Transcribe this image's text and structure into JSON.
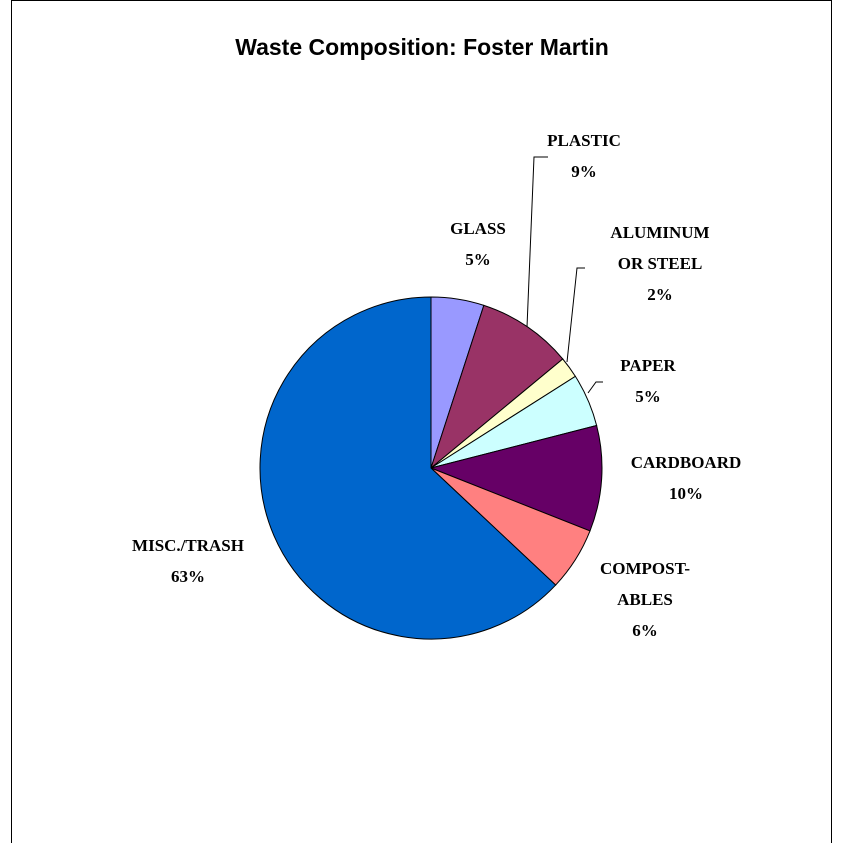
{
  "chart_data": {
    "type": "pie",
    "title": "Waste Composition: Foster Martin",
    "slices": [
      {
        "label_lines": [
          "GLASS"
        ],
        "value": 5,
        "value_label": "5%",
        "color": "#9999ff"
      },
      {
        "label_lines": [
          "PLASTIC"
        ],
        "value": 9,
        "value_label": "9%",
        "color": "#993366"
      },
      {
        "label_lines": [
          "ALUMINUM",
          "OR STEEL"
        ],
        "value": 2,
        "value_label": "2%",
        "color": "#ffffcc"
      },
      {
        "label_lines": [
          "PAPER"
        ],
        "value": 5,
        "value_label": "5%",
        "color": "#ccffff"
      },
      {
        "label_lines": [
          "CARDBOARD"
        ],
        "value": 10,
        "value_label": "10%",
        "color": "#660066"
      },
      {
        "label_lines": [
          "COMPOST-",
          "ABLES"
        ],
        "value": 6,
        "value_label": "6%",
        "color": "#ff8080"
      },
      {
        "label_lines": [
          "MISC./TRASH"
        ],
        "value": 63,
        "value_label": "63%",
        "color": "#0066cc"
      }
    ],
    "start": "12 o'clock",
    "direction": "clockwise",
    "legend": "none"
  }
}
